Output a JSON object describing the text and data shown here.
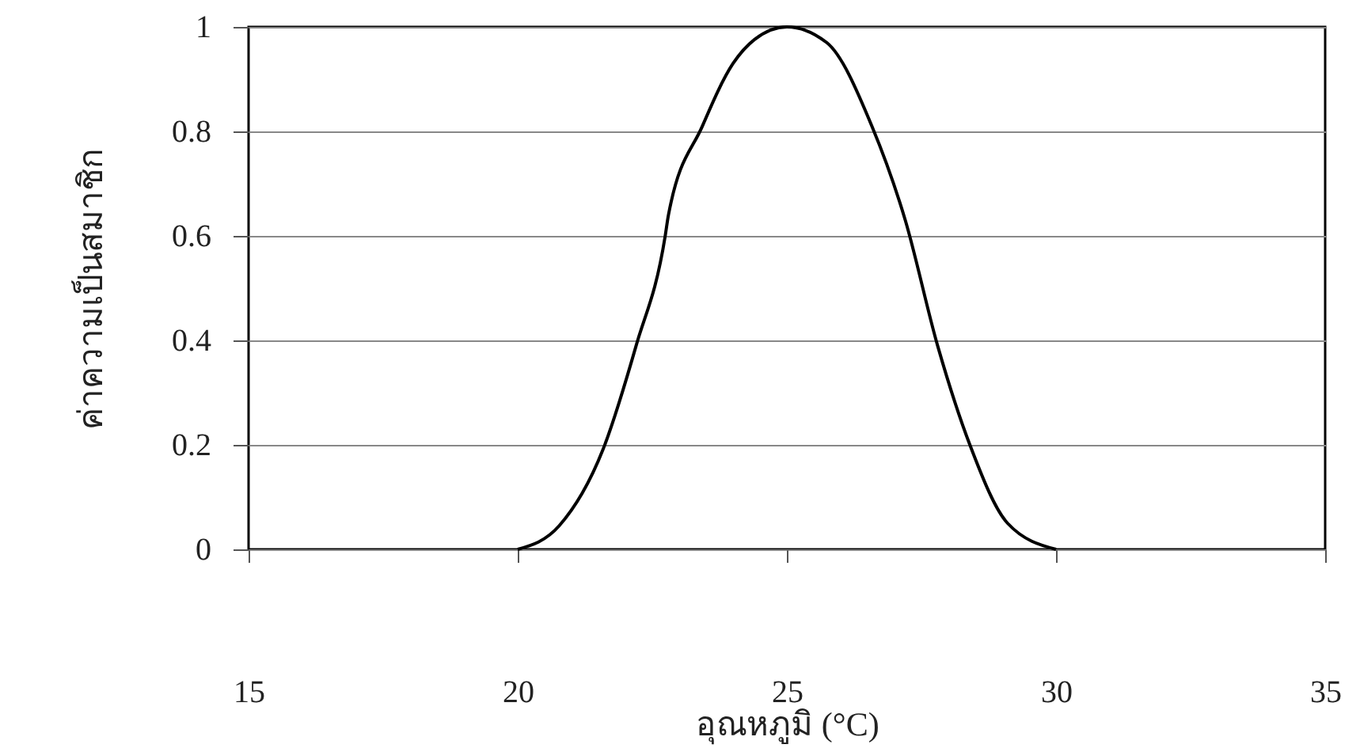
{
  "chart_data": {
    "type": "line",
    "xlabel": "อุณหภูมิ (°C)",
    "ylabel": "ค่าความเป็นสมาชิก",
    "x": [
      20,
      20.77,
      21.58,
      22.2,
      22.74,
      22.8,
      23.43,
      24,
      24.4,
      25,
      25.74,
      26.58,
      27.2,
      27.8,
      28.4,
      29.1,
      30
    ],
    "series": [
      {
        "color": "#000000",
        "values": [
          0,
          0.045,
          0.19,
          0.39,
          0.6,
          0.64,
          0.81,
          0.93,
          0.976,
          1,
          0.97,
          0.81,
          0.63,
          0.39,
          0.2,
          0.05,
          0
        ]
      }
    ],
    "xlim": [
      15,
      35
    ],
    "xticks": [
      15,
      20,
      25,
      30,
      35
    ],
    "ylim": [
      0,
      1
    ],
    "yticks": [
      0,
      0.2,
      0.4,
      0.6,
      0.8,
      1
    ],
    "grid": "y",
    "marker": "none",
    "line_style": "solid"
  }
}
